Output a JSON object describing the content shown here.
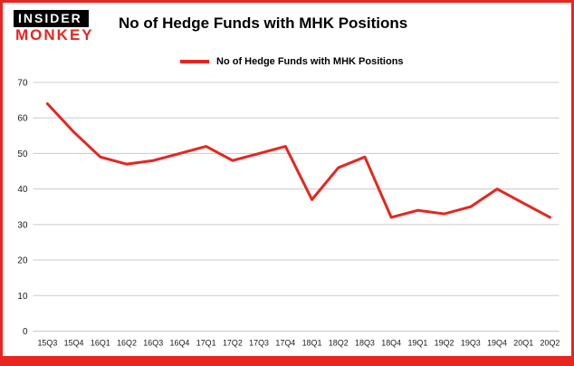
{
  "header": {
    "logo_line1": "INSIDER",
    "logo_line2": "MONKEY",
    "title": "No of Hedge Funds with MHK Positions"
  },
  "legend": {
    "label": "No of Hedge Funds with MHK Positions"
  },
  "colors": {
    "accent_red": "#e8251f",
    "grid": "#c9c9c9",
    "axis_text": "#1a1a1a"
  },
  "chart_data": {
    "type": "line",
    "title": "No of Hedge Funds with MHK Positions",
    "categories": [
      "15Q3",
      "15Q4",
      "16Q1",
      "16Q2",
      "16Q3",
      "16Q4",
      "17Q1",
      "17Q2",
      "17Q3",
      "17Q4",
      "18Q1",
      "18Q2",
      "18Q3",
      "18Q4",
      "19Q1",
      "19Q2",
      "19Q3",
      "19Q4",
      "20Q1",
      "20Q2"
    ],
    "values": [
      64,
      56,
      49,
      47,
      48,
      50,
      52,
      48,
      50,
      52,
      37,
      46,
      49,
      32,
      34,
      33,
      35,
      40,
      36,
      32
    ],
    "ylim": [
      0,
      70
    ],
    "yticks": [
      0,
      10,
      20,
      30,
      40,
      50,
      60,
      70
    ],
    "grid": true,
    "line_color": "#e8251f",
    "xlabel": "",
    "ylabel": "",
    "legend_position": "top-left"
  }
}
